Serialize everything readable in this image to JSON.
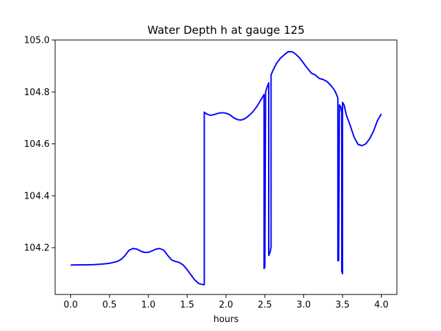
{
  "chart_data": {
    "type": "line",
    "title": "Water Depth h at gauge 125",
    "xlabel": "hours",
    "ylabel": "",
    "xlim": [
      -0.2,
      4.2
    ],
    "ylim": [
      104.02,
      105.0
    ],
    "xticks": [
      0.0,
      0.5,
      1.0,
      1.5,
      2.0,
      2.5,
      3.0,
      3.5,
      4.0
    ],
    "xtick_labels": [
      "0.0",
      "0.5",
      "1.0",
      "1.5",
      "2.0",
      "2.5",
      "3.0",
      "3.5",
      "4.0"
    ],
    "yticks": [
      104.2,
      104.4,
      104.6,
      104.8,
      105.0
    ],
    "ytick_labels": [
      "104.2",
      "104.4",
      "104.6",
      "104.8",
      "105.0"
    ],
    "grid": false,
    "series": [
      {
        "color": "#0000ff",
        "x": [
          0.0,
          0.05,
          0.1,
          0.2,
          0.3,
          0.4,
          0.5,
          0.6,
          0.65,
          0.7,
          0.75,
          0.8,
          0.85,
          0.9,
          0.95,
          1.0,
          1.05,
          1.1,
          1.15,
          1.2,
          1.25,
          1.3,
          1.35,
          1.4,
          1.45,
          1.5,
          1.55,
          1.6,
          1.65,
          1.7,
          1.72,
          1.72,
          1.75,
          1.8,
          1.85,
          1.9,
          1.95,
          2.0,
          2.05,
          2.1,
          2.15,
          2.2,
          2.25,
          2.3,
          2.35,
          2.4,
          2.45,
          2.48,
          2.49,
          2.49,
          2.5,
          2.51,
          2.51,
          2.53,
          2.55,
          2.55,
          2.57,
          2.58,
          2.58,
          2.6,
          2.65,
          2.7,
          2.75,
          2.8,
          2.85,
          2.9,
          2.95,
          3.0,
          3.05,
          3.1,
          3.15,
          3.2,
          3.25,
          3.3,
          3.35,
          3.4,
          3.43,
          3.44,
          3.44,
          3.45,
          3.46,
          3.46,
          3.48,
          3.49,
          3.49,
          3.5,
          3.5,
          3.52,
          3.55,
          3.6,
          3.65,
          3.7,
          3.75,
          3.8,
          3.85,
          3.9,
          3.95,
          4.0
        ],
        "y": [
          104.133,
          104.134,
          104.134,
          104.134,
          104.135,
          104.137,
          104.14,
          104.147,
          104.155,
          104.17,
          104.19,
          104.197,
          104.195,
          104.187,
          104.182,
          104.182,
          104.188,
          104.195,
          104.197,
          104.19,
          104.17,
          104.153,
          104.147,
          104.143,
          104.133,
          104.115,
          104.095,
          104.075,
          104.062,
          104.058,
          104.058,
          104.722,
          104.715,
          104.71,
          104.713,
          104.718,
          104.72,
          104.718,
          104.712,
          104.7,
          104.693,
          104.692,
          104.698,
          104.71,
          104.725,
          104.745,
          104.77,
          104.785,
          104.79,
          104.12,
          104.125,
          104.8,
          104.8,
          104.82,
          104.835,
          104.17,
          104.185,
          104.205,
          104.865,
          104.88,
          104.91,
          104.93,
          104.943,
          104.955,
          104.955,
          104.945,
          104.93,
          104.91,
          104.89,
          104.872,
          104.865,
          104.852,
          104.848,
          104.84,
          104.825,
          104.805,
          104.785,
          104.775,
          104.15,
          104.15,
          104.75,
          104.75,
          104.74,
          104.72,
          104.11,
          104.1,
          104.76,
          104.75,
          104.71,
          104.67,
          104.625,
          104.598,
          104.593,
          104.6,
          104.62,
          104.65,
          104.69,
          104.715
        ]
      }
    ]
  }
}
